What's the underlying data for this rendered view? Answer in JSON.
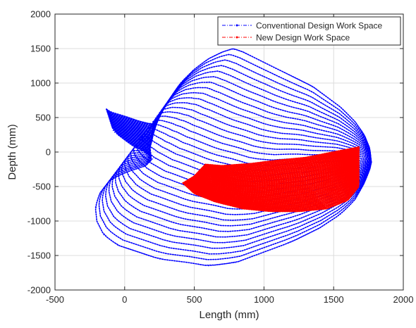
{
  "chart_data": {
    "type": "scatter",
    "xlabel": "Length (mm)",
    "ylabel": "Depth (mm)",
    "xlim": [
      -500,
      2000
    ],
    "ylim": [
      -2000,
      2000
    ],
    "xticks": [
      -500,
      0,
      500,
      1000,
      1500,
      2000
    ],
    "yticks": [
      -2000,
      -1500,
      -1000,
      -500,
      0,
      500,
      1000,
      1500,
      2000
    ],
    "grid": true,
    "legend_position": "top-right",
    "series": [
      {
        "name": "Conventional Design Work Space",
        "color": "#0000ff",
        "style": "dash-dot",
        "envelope_upper": [
          [
            -130,
            620
          ],
          [
            -100,
            580
          ],
          [
            0,
            520
          ],
          [
            100,
            450
          ],
          [
            200,
            400
          ],
          [
            300,
            700
          ],
          [
            400,
            1000
          ],
          [
            500,
            1200
          ],
          [
            600,
            1350
          ],
          [
            700,
            1450
          ],
          [
            780,
            1500
          ],
          [
            850,
            1450
          ],
          [
            950,
            1350
          ],
          [
            1050,
            1250
          ],
          [
            1150,
            1150
          ],
          [
            1250,
            1050
          ],
          [
            1350,
            950
          ],
          [
            1450,
            800
          ],
          [
            1550,
            650
          ],
          [
            1650,
            450
          ],
          [
            1720,
            250
          ],
          [
            1760,
            50
          ],
          [
            1770,
            -150
          ]
        ],
        "envelope_lower": [
          [
            -130,
            620
          ],
          [
            -80,
            300
          ],
          [
            50,
            100
          ],
          [
            150,
            0
          ],
          [
            200,
            -100
          ],
          [
            150,
            -200
          ],
          [
            0,
            -300
          ],
          [
            -100,
            -400
          ],
          [
            -180,
            -600
          ],
          [
            -210,
            -800
          ],
          [
            -200,
            -1000
          ],
          [
            -150,
            -1200
          ],
          [
            -50,
            -1350
          ],
          [
            100,
            -1450
          ],
          [
            250,
            -1550
          ],
          [
            450,
            -1600
          ],
          [
            600,
            -1650
          ],
          [
            800,
            -1600
          ],
          [
            1000,
            -1450
          ],
          [
            1200,
            -1300
          ],
          [
            1400,
            -1100
          ],
          [
            1550,
            -900
          ],
          [
            1650,
            -700
          ],
          [
            1720,
            -450
          ],
          [
            1760,
            -250
          ],
          [
            1770,
            -150
          ]
        ]
      },
      {
        "name": "New Design Work Space",
        "color": "#ff0000",
        "style": "dash-dot",
        "envelope_upper": [
          [
            420,
            -450
          ],
          [
            500,
            -350
          ],
          [
            580,
            -180
          ],
          [
            700,
            -200
          ],
          [
            900,
            -170
          ],
          [
            1100,
            -120
          ],
          [
            1300,
            -80
          ],
          [
            1500,
            0
          ],
          [
            1680,
            70
          ]
        ],
        "envelope_lower": [
          [
            420,
            -450
          ],
          [
            500,
            -600
          ],
          [
            650,
            -720
          ],
          [
            850,
            -820
          ],
          [
            1050,
            -860
          ],
          [
            1250,
            -860
          ],
          [
            1450,
            -820
          ],
          [
            1600,
            -700
          ],
          [
            1680,
            -500
          ],
          [
            1680,
            70
          ]
        ]
      }
    ]
  }
}
